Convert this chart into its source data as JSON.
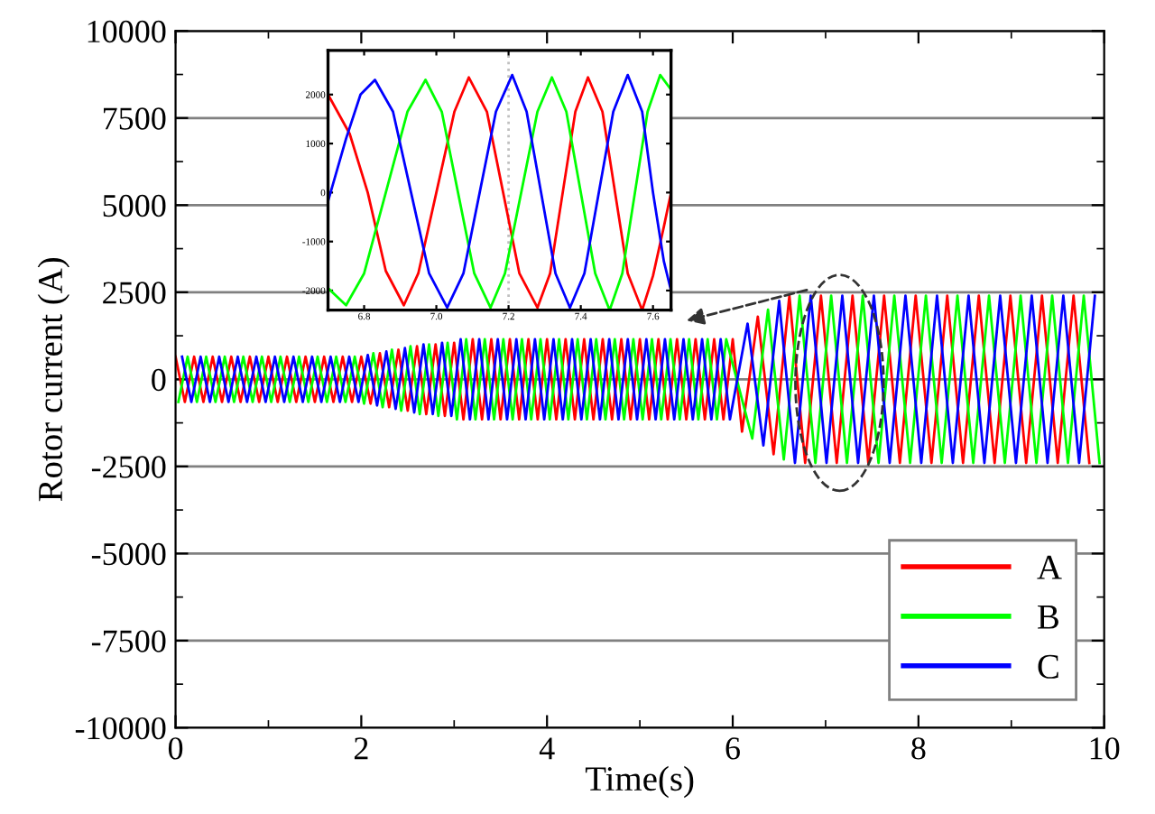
{
  "chart_data": [
    {
      "type": "line",
      "xlabel": "Time(s)",
      "ylabel": "Rotor current (A)",
      "xlim": [
        0,
        10
      ],
      "xticks": [
        0,
        2,
        4,
        6,
        8,
        10
      ],
      "ylim": [
        -10000,
        10000
      ],
      "yticks": [
        -10000,
        -7500,
        -5000,
        -2500,
        0,
        2500,
        5000,
        7500,
        10000
      ],
      "grid": "y",
      "legend": "bottom right",
      "line_style": "solid",
      "marker": "none",
      "series": [
        {
          "name": "A",
          "color": "#ff0000",
          "x": [
            0.0,
            0.1,
            0.2,
            0.3,
            0.4,
            0.5,
            0.6,
            0.7,
            0.8,
            0.9,
            1.0,
            1.1,
            1.2,
            1.3,
            1.4,
            1.5,
            1.6,
            1.7,
            1.8,
            1.9,
            2.0,
            2.1,
            2.2,
            2.3,
            2.4,
            2.5,
            2.6,
            2.7,
            2.8,
            2.9,
            3.0,
            3.1,
            3.2,
            3.3,
            3.4,
            3.5,
            3.6,
            3.7,
            3.8,
            3.9,
            4.0,
            4.1,
            4.2,
            4.3,
            4.4,
            4.5,
            4.6,
            4.7,
            4.8,
            4.9,
            5.0,
            5.1,
            5.2,
            5.3,
            5.4,
            5.5,
            5.6,
            5.7,
            5.8,
            5.9,
            6.0,
            6.1,
            6.27,
            6.44,
            6.61,
            6.78,
            6.95,
            7.12,
            7.29,
            7.46,
            7.63,
            7.8,
            7.97,
            8.14,
            8.31,
            8.48,
            8.65,
            8.82,
            8.99,
            9.16,
            9.33,
            9.5,
            9.67,
            9.84
          ],
          "values": [
            650,
            -650,
            650,
            -650,
            650,
            -650,
            650,
            -650,
            650,
            -650,
            650,
            -650,
            650,
            -650,
            650,
            -650,
            650,
            -650,
            650,
            -650,
            650,
            -700,
            750,
            -800,
            850,
            -900,
            950,
            -1000,
            1000,
            -1050,
            1050,
            -1150,
            1150,
            -1150,
            1150,
            -1150,
            1150,
            -1150,
            1150,
            -1150,
            1150,
            -1150,
            1150,
            -1150,
            1150,
            -1150,
            1150,
            -1150,
            1150,
            -1150,
            1150,
            -1150,
            1150,
            -1150,
            1150,
            -1150,
            1150,
            -1150,
            1150,
            -1150,
            1150,
            -1500,
            1800,
            -2150,
            2400,
            -2400,
            2400,
            -2400,
            2400,
            -2400,
            2400,
            -2400,
            2400,
            -2400,
            2400,
            -2400,
            2400,
            -2400,
            2400,
            -2400,
            2400,
            -2400,
            2400,
            -2400
          ]
        },
        {
          "name": "B",
          "color": "#00ff00",
          "x": [
            0.03,
            0.13,
            0.23,
            0.33,
            0.43,
            0.53,
            0.63,
            0.73,
            0.83,
            0.93,
            1.03,
            1.13,
            1.23,
            1.33,
            1.43,
            1.53,
            1.63,
            1.73,
            1.83,
            1.93,
            2.03,
            2.13,
            2.23,
            2.33,
            2.43,
            2.53,
            2.63,
            2.73,
            2.83,
            2.93,
            3.03,
            3.13,
            3.23,
            3.33,
            3.43,
            3.53,
            3.63,
            3.73,
            3.83,
            3.93,
            4.03,
            4.13,
            4.23,
            4.33,
            4.43,
            4.53,
            4.63,
            4.73,
            4.83,
            4.93,
            5.03,
            5.13,
            5.23,
            5.33,
            5.43,
            5.53,
            5.63,
            5.73,
            5.83,
            5.93,
            6.21,
            6.38,
            6.55,
            6.72,
            6.89,
            7.06,
            7.23,
            7.4,
            7.57,
            7.74,
            7.91,
            8.08,
            8.25,
            8.42,
            8.59,
            8.76,
            8.93,
            9.1,
            9.27,
            9.44,
            9.61,
            9.78,
            9.95
          ],
          "values": [
            -650,
            650,
            -650,
            650,
            -650,
            650,
            -650,
            650,
            -650,
            650,
            -650,
            650,
            -650,
            650,
            -650,
            650,
            -650,
            650,
            -650,
            650,
            -700,
            750,
            -800,
            850,
            -900,
            950,
            -1000,
            1000,
            -1050,
            1050,
            -1150,
            1150,
            -1150,
            1150,
            -1150,
            1150,
            -1150,
            1150,
            -1150,
            1150,
            -1150,
            1150,
            -1150,
            1150,
            -1150,
            1150,
            -1150,
            1150,
            -1150,
            1150,
            -1150,
            1150,
            -1150,
            1150,
            -1150,
            1150,
            -1150,
            1150,
            -1150,
            1150,
            -1700,
            2000,
            -2300,
            2400,
            -2400,
            2400,
            -2400,
            2400,
            -2400,
            2400,
            -2400,
            2400,
            -2400,
            2400,
            -2400,
            2400,
            -2400,
            2400,
            -2400,
            2400,
            -2400,
            2400,
            -2400
          ]
        },
        {
          "name": "C",
          "color": "#0000ff",
          "x": [
            0.07,
            0.17,
            0.27,
            0.37,
            0.47,
            0.57,
            0.67,
            0.77,
            0.87,
            0.97,
            1.07,
            1.17,
            1.27,
            1.37,
            1.47,
            1.57,
            1.67,
            1.77,
            1.87,
            1.97,
            2.07,
            2.17,
            2.27,
            2.37,
            2.47,
            2.57,
            2.67,
            2.77,
            2.87,
            2.97,
            3.07,
            3.17,
            3.27,
            3.37,
            3.47,
            3.57,
            3.67,
            3.77,
            3.87,
            3.97,
            4.07,
            4.17,
            4.27,
            4.37,
            4.47,
            4.57,
            4.67,
            4.77,
            4.87,
            4.97,
            5.07,
            5.17,
            5.27,
            5.37,
            5.47,
            5.57,
            5.67,
            5.77,
            5.87,
            5.97,
            6.16,
            6.33,
            6.5,
            6.67,
            6.84,
            7.01,
            7.18,
            7.35,
            7.52,
            7.69,
            7.86,
            8.03,
            8.2,
            8.37,
            8.54,
            8.71,
            8.88,
            9.05,
            9.22,
            9.39,
            9.56,
            9.73,
            9.9
          ],
          "values": [
            650,
            -650,
            650,
            -650,
            650,
            -650,
            650,
            -650,
            650,
            -650,
            650,
            -650,
            650,
            -650,
            650,
            -650,
            650,
            -650,
            650,
            -650,
            700,
            -750,
            800,
            -850,
            900,
            -950,
            1000,
            -1000,
            1050,
            -1050,
            1150,
            -1150,
            1150,
            -1150,
            1150,
            -1150,
            1150,
            -1150,
            1150,
            -1150,
            1150,
            -1150,
            1150,
            -1150,
            1150,
            -1150,
            1150,
            -1150,
            1150,
            -1150,
            1150,
            -1150,
            1150,
            -1150,
            1150,
            -1150,
            1150,
            -1150,
            1150,
            -1150,
            1600,
            -1900,
            2250,
            -2400,
            2400,
            -2400,
            2400,
            -2400,
            2400,
            -2400,
            2400,
            -2400,
            2400,
            -2400,
            2400,
            -2400,
            2400,
            -2400,
            2400,
            -2400,
            2400,
            -2400,
            2400
          ]
        }
      ]
    },
    {
      "type": "line",
      "xlim": [
        6.7,
        7.65
      ],
      "xticks": [
        6.8,
        {
          "value": 7,
          "label": "7.0"
        },
        7.2,
        7.4,
        7.6
      ],
      "ylim": [
        -2400,
        2900
      ],
      "yticks": [
        -2000,
        -1000,
        0,
        1000,
        2000
      ],
      "grid": false,
      "line_style": "solid",
      "marker": "none",
      "ref_lines": [
        {
          "axis": "x",
          "value": 7.2,
          "color": "#c0c0c0",
          "line_style": "dotted"
        }
      ],
      "series": [
        {
          "color": "#ff0000",
          "x": [
            6.7,
            6.76,
            6.81,
            6.86,
            6.91,
            6.95,
            7.0,
            7.05,
            7.09,
            7.14,
            7.185,
            7.23,
            7.28,
            7.315,
            7.35,
            7.385,
            7.42,
            7.46,
            7.495,
            7.53,
            7.57,
            7.6,
            7.63,
            7.65
          ],
          "values": [
            2000,
            1200,
            0,
            -1600,
            -2300,
            -1650,
            0,
            1650,
            2350,
            1650,
            0,
            -1650,
            -2350,
            -1650,
            0,
            1650,
            2350,
            1650,
            0,
            -1650,
            -2400,
            -1700,
            -700,
            0
          ]
        },
        {
          "color": "#00ff00",
          "x": [
            6.7,
            6.75,
            6.8,
            6.86,
            6.92,
            6.97,
            7.015,
            7.06,
            7.105,
            7.15,
            7.19,
            7.235,
            7.28,
            7.32,
            7.36,
            7.4,
            7.44,
            7.48,
            7.515,
            7.55,
            7.585,
            7.62,
            7.65
          ],
          "values": [
            -1950,
            -2300,
            -1650,
            0,
            1650,
            2300,
            1650,
            0,
            -1650,
            -2350,
            -1650,
            0,
            1650,
            2350,
            1650,
            0,
            -1650,
            -2400,
            -1650,
            0,
            1650,
            2400,
            2100
          ]
        },
        {
          "color": "#0000ff",
          "x": [
            6.7,
            6.75,
            6.79,
            6.83,
            6.88,
            6.93,
            6.98,
            7.03,
            7.075,
            7.12,
            7.165,
            7.21,
            7.25,
            7.29,
            7.33,
            7.37,
            7.41,
            7.45,
            7.49,
            7.53,
            7.57,
            7.6,
            7.63,
            7.65
          ],
          "values": [
            -180,
            1100,
            2000,
            2300,
            1650,
            0,
            -1650,
            -2350,
            -1650,
            0,
            1650,
            2400,
            1650,
            0,
            -1650,
            -2350,
            -1650,
            0,
            1650,
            2400,
            1650,
            0,
            -1400,
            -2000
          ]
        }
      ]
    }
  ]
}
